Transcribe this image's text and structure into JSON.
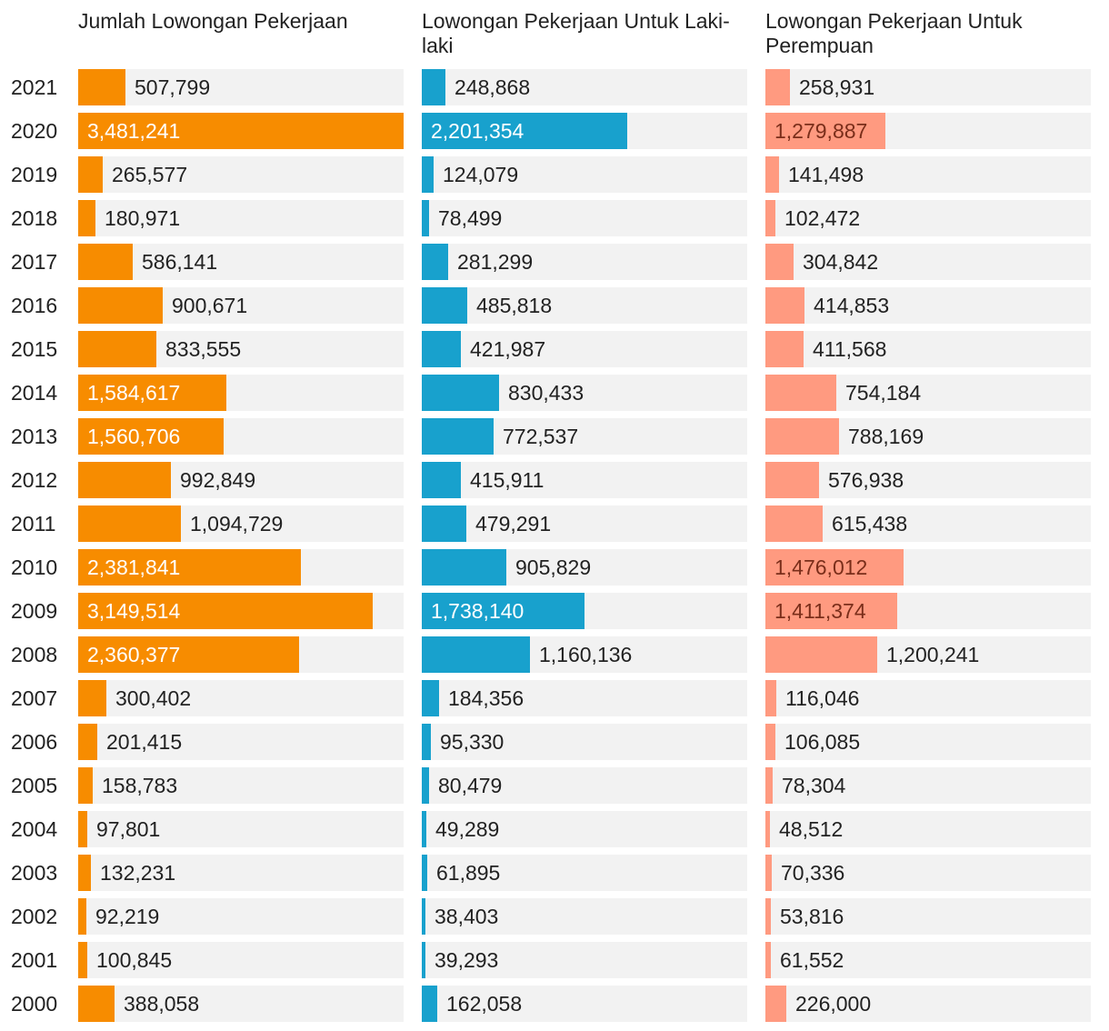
{
  "chart_data": {
    "type": "bar",
    "orientation": "horizontal",
    "categories": [
      "2021",
      "2020",
      "2019",
      "2018",
      "2017",
      "2016",
      "2015",
      "2014",
      "2013",
      "2012",
      "2011",
      "2010",
      "2009",
      "2008",
      "2007",
      "2006",
      "2005",
      "2004",
      "2003",
      "2002",
      "2001",
      "2000"
    ],
    "series": [
      {
        "name": "Jumlah Lowongan Pekerjaan",
        "color": "#f78c00",
        "max": 3481241,
        "values": [
          507799,
          3481241,
          265577,
          180971,
          586141,
          900671,
          833555,
          1584617,
          1560706,
          992849,
          1094729,
          2381841,
          3149514,
          2360377,
          300402,
          201415,
          158783,
          97801,
          132231,
          92219,
          100845,
          388058
        ],
        "labels": [
          "507,799",
          "3,481,241",
          "265,577",
          "180,971",
          "586,141",
          "900,671",
          "833,555",
          "1,584,617",
          "1,560,706",
          "992,849",
          "1,094,729",
          "2,381,841",
          "3,149,514",
          "2,360,377",
          "300,402",
          "201,415",
          "158,783",
          "97,801",
          "132,231",
          "92,219",
          "100,845",
          "388,058"
        ]
      },
      {
        "name": "Lowongan Pekerjaan Untuk Laki-laki",
        "color": "#18a1cd",
        "max": 3481241,
        "values": [
          248868,
          2201354,
          124079,
          78499,
          281299,
          485818,
          421987,
          830433,
          772537,
          415911,
          479291,
          905829,
          1738140,
          1160136,
          184356,
          95330,
          80479,
          49289,
          61895,
          38403,
          39293,
          162058
        ],
        "labels": [
          "248,868",
          "2,201,354",
          "124,079",
          "78,499",
          "281,299",
          "485,818",
          "421,987",
          "830,433",
          "772,537",
          "415,911",
          "479,291",
          "905,829",
          "1,738,140",
          "1,160,136",
          "184,356",
          "95,330",
          "80,479",
          "49,289",
          "61,895",
          "38,403",
          "39,293",
          "162,058"
        ]
      },
      {
        "name": "Lowongan Pekerjaan Untuk Perempuan",
        "color": "#ff9a80",
        "max": 3481241,
        "values": [
          258931,
          1279887,
          141498,
          102472,
          304842,
          414853,
          411568,
          754184,
          788169,
          576938,
          615438,
          1476012,
          1411374,
          1200241,
          116046,
          106085,
          78304,
          48512,
          70336,
          53816,
          61552,
          226000
        ],
        "labels": [
          "258,931",
          "1,279,887",
          "141,498",
          "102,472",
          "304,842",
          "414,853",
          "411,568",
          "754,184",
          "788,169",
          "576,938",
          "615,438",
          "1,476,012",
          "1,411,374",
          "1,200,241",
          "116,046",
          "106,085",
          "78,304",
          "48,512",
          "70,336",
          "53,816",
          "61,552",
          "226,000"
        ]
      }
    ]
  }
}
